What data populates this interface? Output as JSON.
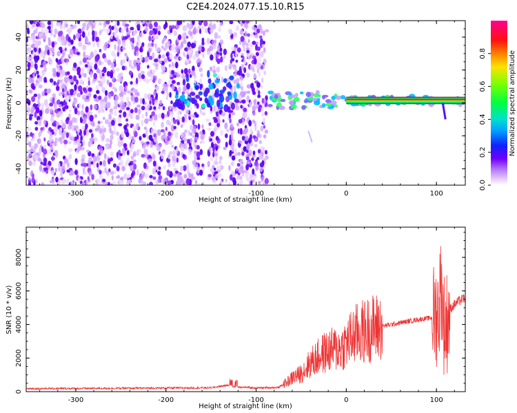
{
  "title": "C2E4.2024.077.15.10.R15",
  "colors": {
    "snr_line": "#ee3333",
    "axis": "#000000",
    "colormap": [
      "#ffffff",
      "#e4c8ff",
      "#b070ff",
      "#7000ff",
      "#3010ee",
      "#1040ff",
      "#00c0ff",
      "#00e0b0",
      "#20ff30",
      "#c8ff00",
      "#ffd000",
      "#ff5000",
      "#ff0030",
      "#ff0090"
    ]
  },
  "chart_data": [
    {
      "type": "heatmap",
      "title": "C2E4.2024.077.15.10.R15",
      "xlabel": "Height of straight line (km)",
      "ylabel": "Frequency (Hz)",
      "xlim": [
        -355,
        132
      ],
      "ylim": [
        -50,
        50
      ],
      "xticks": [
        -300,
        -200,
        -100,
        0,
        100
      ],
      "yticks": [
        -40,
        -20,
        0,
        20,
        40
      ],
      "colorbar": {
        "label": "Normalized spectral amplitude",
        "range": [
          0,
          1
        ],
        "ticks": [
          0.0,
          0.2,
          0.4,
          0.6,
          0.8
        ]
      },
      "features": {
        "broadband_noise_x_range": [
          -355,
          -88
        ],
        "gap_x_ranges": [
          [
            -158,
            -153
          ],
          [
            -138,
            -130
          ]
        ],
        "carrier_band_x_range": [
          -88,
          132
        ],
        "carrier_frequency_hz": 1.5,
        "carrier_halfwidth_hz": 2,
        "tail_stroke": {
          "x": [
            -42,
            -38
          ],
          "y": [
            -17,
            -24
          ]
        },
        "tail_stroke2": {
          "x": [
            107,
            110
          ],
          "y": [
            0,
            -10
          ]
        }
      }
    },
    {
      "type": "line",
      "xlabel": "Height of straight line (km)",
      "ylabel": "SNR (10 * v/v)",
      "xlim": [
        -355,
        132
      ],
      "ylim": [
        0,
        9800
      ],
      "xticks": [
        -300,
        -200,
        -100,
        0,
        100
      ],
      "yticks": [
        0,
        2000,
        4000,
        6000,
        8000
      ],
      "series": [
        {
          "x": [
            -355,
            -250,
            -150,
            -130,
            -125,
            -100,
            -75,
            -65,
            -58,
            -52,
            -45,
            -40,
            -35,
            -25,
            -15,
            -5,
            0,
            10,
            20,
            30,
            40,
            60,
            80,
            95,
            100,
            103,
            105,
            108,
            110,
            115,
            120,
            125,
            132
          ],
          "values": [
            180,
            200,
            230,
            400,
            300,
            220,
            250,
            600,
            900,
            1000,
            1400,
            1700,
            1900,
            2300,
            2500,
            2600,
            2900,
            3400,
            3600,
            3800,
            3900,
            4100,
            4300,
            4400,
            4600,
            5000,
            6500,
            4200,
            3800,
            4900,
            5200,
            5400,
            5600
          ]
        }
      ]
    }
  ]
}
